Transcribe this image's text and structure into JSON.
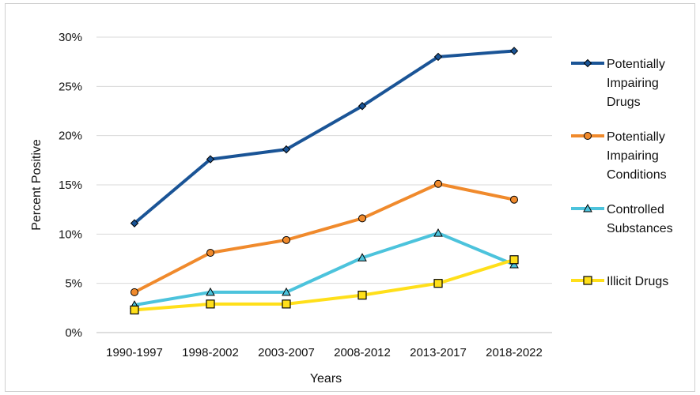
{
  "chart_data": {
    "type": "line",
    "title": "",
    "xlabel": "Years",
    "ylabel": "Percent Positive",
    "categories": [
      "1990-1997",
      "1998-2002",
      "2003-2007",
      "2008-2012",
      "2013-2017",
      "2018-2022"
    ],
    "ylim": [
      0,
      30
    ],
    "yticks": [
      0,
      5,
      10,
      15,
      20,
      25,
      30
    ],
    "ytick_labels": [
      "0%",
      "5%",
      "10%",
      "15%",
      "20%",
      "25%",
      "30%"
    ],
    "grid": true,
    "legend_position": "right",
    "series": [
      {
        "name": "Potentially Impairing Drugs",
        "name_lines": [
          "Potentially",
          "Impairing",
          "Drugs"
        ],
        "color": "#1a5496",
        "marker": "diamond",
        "values": [
          11.1,
          17.6,
          18.6,
          23.0,
          28.0,
          28.6
        ]
      },
      {
        "name": "Potentially Impairing Conditions",
        "name_lines": [
          "Potentially",
          "Impairing",
          "Conditions"
        ],
        "color": "#f08a2c",
        "marker": "circle",
        "values": [
          4.1,
          8.1,
          9.4,
          11.6,
          15.1,
          13.5
        ]
      },
      {
        "name": "Controlled Substances",
        "name_lines": [
          "Controlled",
          "Substances"
        ],
        "color": "#4cc3dc",
        "marker": "triangle",
        "values": [
          2.8,
          4.1,
          4.1,
          7.6,
          10.1,
          6.9
        ]
      },
      {
        "name": "Illicit Drugs",
        "name_lines": [
          "Illicit Drugs"
        ],
        "color": "#ffdf1a",
        "marker": "square",
        "values": [
          2.3,
          2.9,
          2.9,
          3.8,
          5.0,
          7.4
        ]
      }
    ]
  }
}
